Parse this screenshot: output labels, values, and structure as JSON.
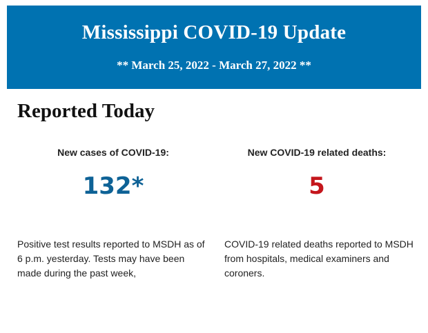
{
  "banner": {
    "title": "Mississippi COVID-19 Update",
    "date_range": "** March 25, 2022 - March 27, 2022 **",
    "background_color": "#0072b1"
  },
  "section": {
    "heading": "Reported Today"
  },
  "stats": {
    "cases": {
      "label": "New cases of COVID-19:",
      "value": "132*",
      "color": "#0e6296",
      "description": "Positive test results reported to MSDH as of 6 p.m. yesterday. Tests may have been made during the past week,"
    },
    "deaths": {
      "label": "New COVID-19 related deaths:",
      "value": "5",
      "color": "#c4161c",
      "description": "COVID-19 related deaths reported to MSDH from hospitals, medical examiners and coroners."
    }
  }
}
